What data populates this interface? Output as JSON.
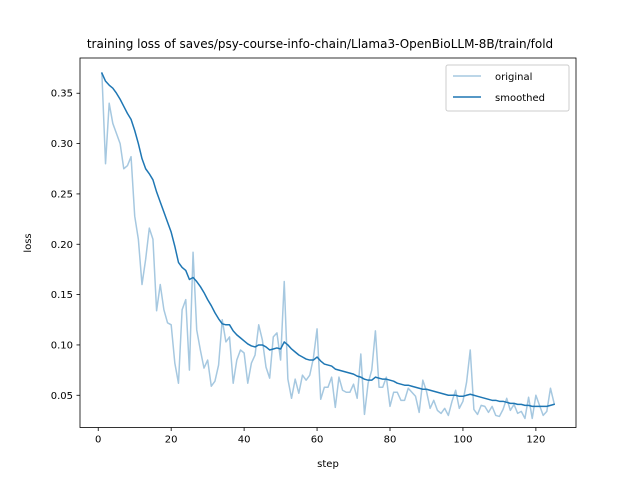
{
  "chart_data": {
    "type": "line",
    "title": "training loss of saves/psy-course-info-chain/Llama3-OpenBioLLM-8B/train/fold",
    "xlabel": "step",
    "ylabel": "loss",
    "xlim": [
      -5,
      131
    ],
    "ylim": [
      0.018,
      0.385
    ],
    "xticks": [
      0,
      20,
      40,
      60,
      80,
      100,
      120
    ],
    "yticks": [
      0.05,
      0.1,
      0.15,
      0.2,
      0.25,
      0.3,
      0.35
    ],
    "ytick_labels": [
      "0.05",
      "0.10",
      "0.15",
      "0.20",
      "0.25",
      "0.30",
      "0.35"
    ],
    "grid": false,
    "legend_position": "top-right",
    "series": [
      {
        "name": "original",
        "color": "#a6c8e0",
        "x": [
          1,
          2,
          3,
          4,
          5,
          6,
          7,
          8,
          9,
          10,
          11,
          12,
          13,
          14,
          15,
          16,
          17,
          18,
          19,
          20,
          21,
          22,
          23,
          24,
          25,
          26,
          27,
          28,
          29,
          30,
          31,
          32,
          33,
          34,
          35,
          36,
          37,
          38,
          39,
          40,
          41,
          42,
          43,
          44,
          45,
          46,
          47,
          48,
          49,
          50,
          51,
          52,
          53,
          54,
          55,
          56,
          57,
          58,
          59,
          60,
          61,
          62,
          63,
          64,
          65,
          66,
          67,
          68,
          69,
          70,
          71,
          72,
          73,
          74,
          75,
          76,
          77,
          78,
          79,
          80,
          81,
          82,
          83,
          84,
          85,
          86,
          87,
          88,
          89,
          90,
          91,
          92,
          93,
          94,
          95,
          96,
          97,
          98,
          99,
          100,
          101,
          102,
          103,
          104,
          105,
          106,
          107,
          108,
          109,
          110,
          111,
          112,
          113,
          114,
          115,
          116,
          117,
          118,
          119,
          120,
          121,
          122,
          123,
          124,
          125
        ],
        "values": [
          0.37,
          0.28,
          0.34,
          0.32,
          0.31,
          0.3,
          0.275,
          0.278,
          0.287,
          0.228,
          0.205,
          0.16,
          0.185,
          0.216,
          0.205,
          0.134,
          0.16,
          0.135,
          0.122,
          0.12,
          0.082,
          0.062,
          0.135,
          0.145,
          0.075,
          0.192,
          0.115,
          0.095,
          0.077,
          0.085,
          0.059,
          0.064,
          0.08,
          0.125,
          0.103,
          0.108,
          0.062,
          0.085,
          0.095,
          0.092,
          0.062,
          0.082,
          0.09,
          0.12,
          0.105,
          0.078,
          0.067,
          0.108,
          0.112,
          0.085,
          0.163,
          0.066,
          0.047,
          0.066,
          0.052,
          0.07,
          0.065,
          0.07,
          0.087,
          0.116,
          0.046,
          0.058,
          0.058,
          0.068,
          0.038,
          0.068,
          0.055,
          0.053,
          0.053,
          0.061,
          0.047,
          0.091,
          0.031,
          0.062,
          0.075,
          0.114,
          0.058,
          0.058,
          0.068,
          0.039,
          0.053,
          0.053,
          0.045,
          0.045,
          0.057,
          0.053,
          0.049,
          0.033,
          0.065,
          0.054,
          0.037,
          0.045,
          0.035,
          0.032,
          0.037,
          0.03,
          0.044,
          0.055,
          0.037,
          0.044,
          0.063,
          0.095,
          0.036,
          0.031,
          0.04,
          0.039,
          0.033,
          0.039,
          0.03,
          0.029,
          0.036,
          0.047,
          0.035,
          0.041,
          0.032,
          0.034,
          0.027,
          0.048,
          0.027,
          0.05,
          0.04,
          0.03,
          0.034,
          0.057,
          0.042
        ]
      },
      {
        "name": "smoothed",
        "color": "#1f77b4",
        "x": [
          1,
          2,
          3,
          4,
          5,
          6,
          7,
          8,
          9,
          10,
          11,
          12,
          13,
          14,
          15,
          16,
          17,
          18,
          19,
          20,
          21,
          22,
          23,
          24,
          25,
          26,
          27,
          28,
          29,
          30,
          31,
          32,
          33,
          34,
          35,
          36,
          37,
          38,
          39,
          40,
          41,
          42,
          43,
          44,
          45,
          46,
          47,
          48,
          49,
          50,
          51,
          52,
          53,
          54,
          55,
          56,
          57,
          58,
          59,
          60,
          61,
          62,
          63,
          64,
          65,
          66,
          67,
          68,
          69,
          70,
          71,
          72,
          73,
          74,
          75,
          76,
          77,
          78,
          79,
          80,
          81,
          82,
          83,
          84,
          85,
          86,
          87,
          88,
          89,
          90,
          91,
          92,
          93,
          94,
          95,
          96,
          97,
          98,
          99,
          100,
          101,
          102,
          103,
          104,
          105,
          106,
          107,
          108,
          109,
          110,
          111,
          112,
          113,
          114,
          115,
          116,
          117,
          118,
          119,
          120,
          121,
          122,
          123,
          124,
          125
        ],
        "values": [
          0.37,
          0.362,
          0.358,
          0.355,
          0.35,
          0.344,
          0.337,
          0.33,
          0.324,
          0.313,
          0.3,
          0.285,
          0.275,
          0.27,
          0.264,
          0.252,
          0.242,
          0.232,
          0.222,
          0.212,
          0.198,
          0.182,
          0.177,
          0.174,
          0.165,
          0.167,
          0.163,
          0.158,
          0.152,
          0.145,
          0.139,
          0.132,
          0.126,
          0.121,
          0.12,
          0.12,
          0.114,
          0.11,
          0.107,
          0.104,
          0.101,
          0.099,
          0.098,
          0.1,
          0.1,
          0.098,
          0.095,
          0.096,
          0.097,
          0.096,
          0.103,
          0.1,
          0.096,
          0.093,
          0.09,
          0.088,
          0.086,
          0.085,
          0.085,
          0.088,
          0.084,
          0.081,
          0.08,
          0.079,
          0.076,
          0.075,
          0.074,
          0.073,
          0.072,
          0.071,
          0.069,
          0.068,
          0.066,
          0.065,
          0.065,
          0.068,
          0.067,
          0.066,
          0.066,
          0.065,
          0.064,
          0.062,
          0.061,
          0.06,
          0.06,
          0.059,
          0.058,
          0.057,
          0.056,
          0.056,
          0.055,
          0.054,
          0.053,
          0.052,
          0.051,
          0.05,
          0.05,
          0.05,
          0.049,
          0.049,
          0.05,
          0.051,
          0.05,
          0.049,
          0.048,
          0.047,
          0.046,
          0.045,
          0.045,
          0.044,
          0.044,
          0.043,
          0.042,
          0.042,
          0.041,
          0.041,
          0.04,
          0.04,
          0.039,
          0.039,
          0.039,
          0.039,
          0.039,
          0.04,
          0.041
        ]
      }
    ]
  }
}
